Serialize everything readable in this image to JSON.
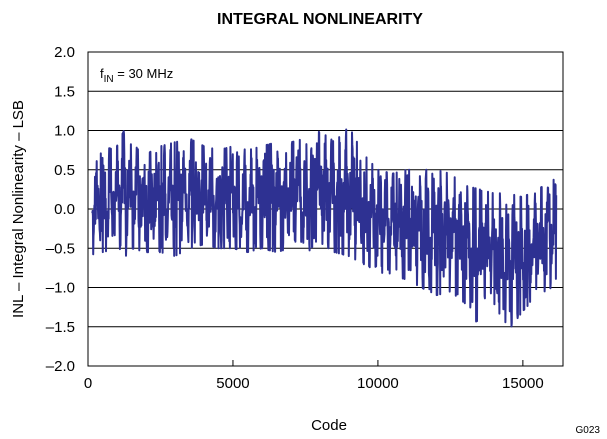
{
  "chart_data": {
    "type": "line",
    "title": "INTEGRAL NONLINEARITY",
    "xlabel": "Code",
    "ylabel": "INL – Integral Nonlinearity – LSB",
    "xlim": [
      0,
      16384
    ],
    "ylim": [
      -2.0,
      2.0
    ],
    "x_ticks": [
      "0",
      "5000",
      "10000",
      "15000"
    ],
    "y_ticks": [
      "2.0",
      "1.5",
      "1.0",
      "0.5",
      "0.0",
      "–0.5",
      "–1.0",
      "–1.5",
      "–2.0"
    ],
    "grid": "horizontal",
    "annotation": {
      "main": "f",
      "subscript": "IN",
      "rest": " = 30 MHz"
    },
    "figure_code": "G023",
    "line_color": "#2e3192",
    "envelope": {
      "x": [
        0,
        500,
        1000,
        1300,
        1500,
        2000,
        2500,
        3000,
        3500,
        4000,
        4500,
        5000,
        5500,
        6000,
        6500,
        7000,
        7500,
        7900,
        8500,
        9000,
        9500,
        10000,
        10500,
        11000,
        11500,
        12000,
        12500,
        13000,
        13500,
        14000,
        14500,
        15000,
        15500,
        16000,
        16383
      ],
      "max": [
        0.4,
        0.75,
        0.8,
        1.05,
        0.8,
        0.75,
        0.8,
        0.85,
        0.9,
        0.8,
        0.75,
        0.8,
        0.75,
        0.8,
        0.85,
        0.85,
        0.9,
        1.05,
        0.85,
        1.05,
        0.7,
        0.5,
        0.45,
        0.5,
        0.5,
        0.5,
        0.45,
        0.3,
        0.25,
        0.2,
        0.2,
        0.15,
        0.25,
        0.35,
        0.5
      ],
      "min": [
        -0.7,
        -0.55,
        -0.5,
        -0.6,
        -0.5,
        -0.55,
        -0.55,
        -0.6,
        -0.5,
        -0.45,
        -0.5,
        -0.5,
        -0.55,
        -0.5,
        -0.55,
        -0.5,
        -0.6,
        -0.4,
        -0.55,
        -0.6,
        -0.7,
        -0.8,
        -0.85,
        -0.9,
        -1.0,
        -1.1,
        -1.05,
        -1.2,
        -1.5,
        -1.2,
        -1.55,
        -1.3,
        -1.1,
        -1.0,
        -0.7
      ]
    }
  }
}
